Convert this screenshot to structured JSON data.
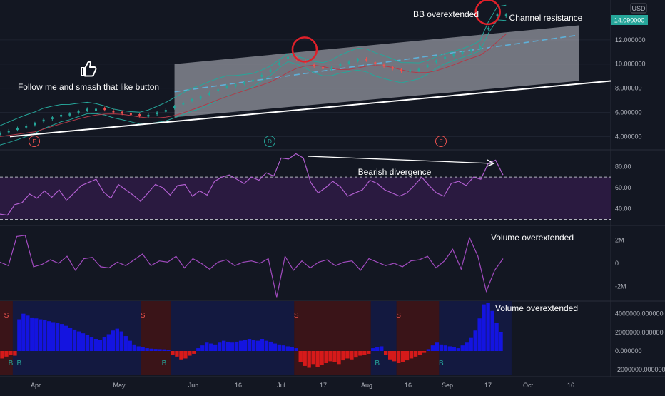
{
  "colors": {
    "background": "#131722",
    "grid": "#1e2330",
    "axis_text": "#b2b5be",
    "white": "#ffffff",
    "bull": "#26a69a",
    "bear": "#ef5350",
    "channel_fill": "#d1d4dc",
    "mid_line": "#5fb0d8",
    "bb_line": "#26a69a",
    "ma_line": "#b23a48",
    "rsi_line": "#b15fd0",
    "rsi_band": "#2a1a40",
    "vol_osc_line": "#a24bc0",
    "hist_pos": "#1414e0",
    "hist_neg": "#d61a1a",
    "bg_blue": "#131940",
    "bg_red": "#3a1418",
    "price_tag": "#26a69a",
    "circle": "#e0202a"
  },
  "currency_label": "USD",
  "current_price": "14.090000",
  "annotations": {
    "like_text": "Follow me and smash that like button",
    "like_icon": "thumbs-up-icon",
    "bb_overextended": "BB overextended",
    "channel_resistance": "Channel resistance",
    "bearish_divergence": "Bearish divergence",
    "volume_overextended_1": "Volume overextended",
    "volume_overextended_2": "Volume overextended"
  },
  "event_markers": [
    {
      "letter": "E",
      "color": "#ef5350",
      "x_date": "Mar 28"
    },
    {
      "letter": "D",
      "color": "#26a69a",
      "x_date": "Jul 2"
    },
    {
      "letter": "E",
      "color": "#ef5350",
      "x_date": "Sep 3"
    }
  ],
  "x_axis_labels": [
    "Apr",
    "May",
    "Jun",
    "16",
    "Jul",
    "17",
    "Aug",
    "16",
    "Sep",
    "17",
    "Oct",
    "16"
  ],
  "chart_data": [
    {
      "type": "line",
      "pane": "price",
      "y_ticks": [
        "4.000000",
        "6.000000",
        "8.000000",
        "10.000000",
        "12.000000"
      ],
      "ylim": [
        3.2,
        15.0
      ],
      "x": [
        0,
        3,
        6,
        9,
        12,
        15,
        18,
        21,
        24,
        27,
        30,
        33,
        36,
        39,
        42,
        45,
        48,
        51,
        54,
        57,
        60,
        63,
        66,
        69,
        72,
        75,
        78,
        81,
        84,
        87,
        90,
        93,
        96,
        99,
        102,
        105,
        108,
        111,
        114,
        117,
        120,
        123,
        126,
        129,
        132,
        135,
        138,
        141,
        144,
        147,
        150,
        153,
        156,
        159,
        162,
        165,
        168,
        171,
        174
      ],
      "close": [
        4.3,
        4.5,
        4.7,
        4.9,
        5.1,
        5.4,
        5.6,
        5.8,
        5.9,
        6.1,
        6.3,
        6.3,
        6.2,
        6.0,
        5.9,
        5.8,
        5.7,
        5.8,
        6.0,
        6.2,
        6.5,
        6.8,
        7.1,
        7.3,
        7.6,
        7.9,
        8.2,
        8.3,
        8.5,
        8.7,
        9.1,
        9.5,
        10.1,
        10.6,
        10.4,
        10.1,
        9.8,
        9.6,
        9.7,
        10.0,
        10.2,
        10.4,
        10.3,
        10.0,
        9.8,
        9.6,
        9.4,
        9.5,
        9.6,
        9.9,
        10.3,
        10.6,
        10.8,
        11.0,
        11.2,
        11.5,
        13.0,
        14.1,
        14.1
      ],
      "channel_upper_line": [
        [
          60,
          10.0
        ],
        [
          199,
          13.2
        ]
      ],
      "channel_lower_line": [
        [
          60,
          5.6
        ],
        [
          199,
          8.6
        ]
      ],
      "channel_mid_line": [
        [
          60,
          7.7
        ],
        [
          199,
          12.4
        ]
      ],
      "support_line": [
        [
          0,
          4.0
        ],
        [
          210,
          8.6
        ]
      ],
      "circles_at": [
        [
          104,
          11.2
        ],
        [
          167,
          14.3
        ]
      ]
    },
    {
      "type": "line",
      "pane": "rsi",
      "y_ticks": [
        "40.00",
        "60.00",
        "80.00"
      ],
      "ylim": [
        27,
        93
      ],
      "band": [
        30,
        70
      ],
      "values": [
        35,
        34,
        44,
        46,
        54,
        50,
        57,
        51,
        58,
        48,
        55,
        62,
        65,
        68,
        56,
        50,
        63,
        58,
        53,
        47,
        55,
        63,
        60,
        53,
        62,
        63,
        52,
        57,
        53,
        66,
        70,
        72,
        68,
        64,
        70,
        67,
        74,
        71,
        88,
        87,
        92,
        88,
        65,
        55,
        60,
        66,
        61,
        52,
        55,
        58,
        67,
        64,
        58,
        55,
        52,
        55,
        62,
        70,
        62,
        55,
        52,
        64,
        66,
        62,
        70,
        68,
        83,
        86,
        72
      ]
    },
    {
      "type": "line",
      "pane": "volume_oscillator",
      "y_ticks": [
        "2M",
        "0",
        "-2M"
      ],
      "ylim": [
        -3,
        3
      ],
      "values": [
        0.1,
        -0.2,
        2.3,
        2.4,
        -0.3,
        -0.1,
        0.3,
        0.0,
        0.6,
        -0.6,
        0.4,
        0.5,
        -0.3,
        -0.4,
        0.1,
        -0.2,
        0.3,
        0.8,
        -0.2,
        0.2,
        0.1,
        0.6,
        -0.4,
        0.4,
        0.0,
        -0.5,
        0.1,
        0.3,
        -0.2,
        0.1,
        0.2,
        0.0,
        0.4,
        -2.9,
        0.6,
        -0.6,
        0.2,
        -0.4,
        0.1,
        0.3,
        -0.2,
        0.1,
        0.2,
        -0.6,
        0.4,
        0.1,
        -0.2,
        0.0,
        -0.3,
        0.2,
        0.3,
        0.6,
        -0.4,
        0.2,
        1.2,
        -0.5,
        2.2,
        0.6,
        -2.4,
        -0.6,
        0.4
      ]
    },
    {
      "type": "bar",
      "pane": "histogram",
      "y_ticks": [
        "4000000.000000",
        "2000000.000000",
        "0.000000",
        "-2000000.000000"
      ],
      "ylim": [
        -2600000,
        5200000
      ],
      "values": [
        -800000,
        -600000,
        -400000,
        -500000,
        3400000,
        4000000,
        3800000,
        3600000,
        3500000,
        3400000,
        3300000,
        3200000,
        3100000,
        3000000,
        2900000,
        2700000,
        2500000,
        2300000,
        2100000,
        1900000,
        1700000,
        1500000,
        1300000,
        1200000,
        1500000,
        1800000,
        2200000,
        2400000,
        2100000,
        1600000,
        1100000,
        700000,
        500000,
        400000,
        300000,
        250000,
        220000,
        200000,
        180000,
        150000,
        -400000,
        -600000,
        -900000,
        -800000,
        -500000,
        -300000,
        300000,
        600000,
        900000,
        800000,
        700000,
        900000,
        1100000,
        1000000,
        900000,
        1000000,
        1100000,
        1200000,
        1300000,
        1200000,
        1100000,
        1300000,
        1100000,
        1000000,
        800000,
        700000,
        600000,
        500000,
        400000,
        300000,
        -1200000,
        -1600000,
        -1800000,
        -1400000,
        -1700000,
        -1500000,
        -1300000,
        -1100000,
        -1200000,
        -1400000,
        -1000000,
        -800000,
        -900000,
        -700000,
        -500000,
        -400000,
        -300000,
        300000,
        400000,
        500000,
        -400000,
        -900000,
        -1100000,
        -1300000,
        -1200000,
        -1000000,
        -800000,
        -600000,
        -400000,
        -200000,
        200000,
        600000,
        900000,
        700000,
        600000,
        500000,
        400000,
        300000,
        600000,
        900000,
        1400000,
        2200000,
        3500000,
        5000000,
        5200000,
        4300000,
        3000000,
        2000000
      ],
      "signals": [
        {
          "letter": "S",
          "at": 1
        },
        {
          "letter": "B",
          "at": 2
        },
        {
          "letter": "B",
          "at": 4
        },
        {
          "letter": "S",
          "at": 33
        },
        {
          "letter": "B",
          "at": 38
        },
        {
          "letter": "S",
          "at": 69
        },
        {
          "letter": "B",
          "at": 88
        },
        {
          "letter": "S",
          "at": 93
        },
        {
          "letter": "B",
          "at": 103
        }
      ],
      "bg_regions": [
        {
          "from": 0,
          "to": 3,
          "color": "#3a1418"
        },
        {
          "from": 3,
          "to": 33,
          "color": "#131940"
        },
        {
          "from": 33,
          "to": 40,
          "color": "#3a1418"
        },
        {
          "from": 40,
          "to": 69,
          "color": "#131940"
        },
        {
          "from": 69,
          "to": 87,
          "color": "#3a1418"
        },
        {
          "from": 87,
          "to": 93,
          "color": "#131940"
        },
        {
          "from": 93,
          "to": 103,
          "color": "#3a1418"
        },
        {
          "from": 103,
          "to": 120,
          "color": "#131940"
        }
      ]
    }
  ]
}
